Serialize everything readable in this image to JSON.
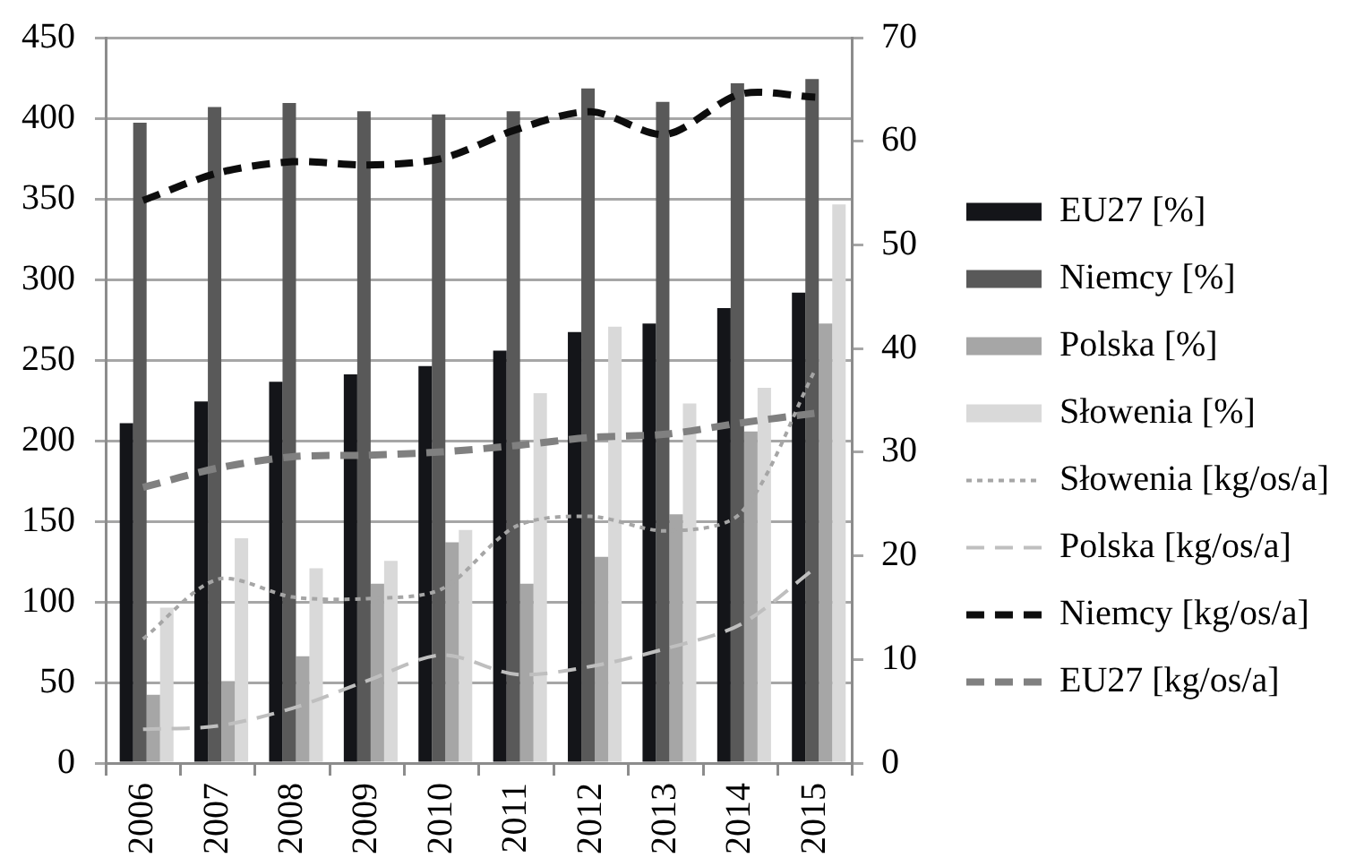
{
  "chart_data": {
    "type": "bar",
    "categories": [
      "2006",
      "2007",
      "2008",
      "2009",
      "2010",
      "2011",
      "2012",
      "2013",
      "2014",
      "2015"
    ],
    "series": [
      {
        "name": "EU27 [%]",
        "axis": "y2",
        "color": "#141519",
        "values": [
          32.8,
          34.9,
          36.8,
          37.5,
          38.3,
          39.8,
          41.6,
          42.4,
          43.9,
          45.4
        ]
      },
      {
        "name": "Niemcy [%]",
        "axis": "y2",
        "color": "#595959",
        "values": [
          61.8,
          63.3,
          63.7,
          62.9,
          62.6,
          62.9,
          65.1,
          63.8,
          65.6,
          66.0
        ]
      },
      {
        "name": "Polska [%]",
        "axis": "y2",
        "color": "#a6a6a6",
        "values": [
          6.6,
          7.9,
          10.3,
          17.3,
          21.3,
          17.3,
          19.9,
          24.0,
          32.0,
          42.4
        ]
      },
      {
        "name": "Słowenia [%]",
        "axis": "y2",
        "color": "#d9d9d9",
        "values": [
          15.0,
          21.7,
          18.8,
          19.5,
          22.5,
          35.7,
          42.1,
          34.7,
          36.2,
          53.9
        ]
      },
      {
        "name": "Słowenia [kg/os/a]",
        "type": "line",
        "line_style": "dotted",
        "color": "#a6a6a6",
        "values": [
          77,
          114,
          103,
          102,
          108,
          147,
          153,
          144,
          155,
          244
        ]
      },
      {
        "name": "Polska [kg/os/a]",
        "type": "line",
        "line_style": "dashed",
        "color": "#bfbfbf",
        "values": [
          21,
          23,
          34,
          51,
          67,
          55,
          60,
          71,
          86,
          121
        ]
      },
      {
        "name": "Niemcy [kg/os/a]",
        "type": "line",
        "line_style": "dashed",
        "color": "#0d0d0d",
        "values": [
          349,
          366,
          373,
          371,
          375,
          393,
          404,
          390,
          415,
          413
        ]
      },
      {
        "name": "EU27 [kg/os/a]",
        "type": "line",
        "line_style": "dashed",
        "color": "#808080",
        "values": [
          171,
          183,
          190,
          191,
          193,
          197,
          202,
          204,
          211,
          217
        ]
      }
    ],
    "ylim": [
      0,
      450
    ],
    "yticks": [
      0,
      50,
      100,
      150,
      200,
      250,
      300,
      350,
      400,
      450
    ],
    "y2lim": [
      0,
      70
    ],
    "y2ticks": [
      0,
      10,
      20,
      30,
      40,
      50,
      60,
      70
    ],
    "grid": "y",
    "legend": "right",
    "marker": "none"
  }
}
